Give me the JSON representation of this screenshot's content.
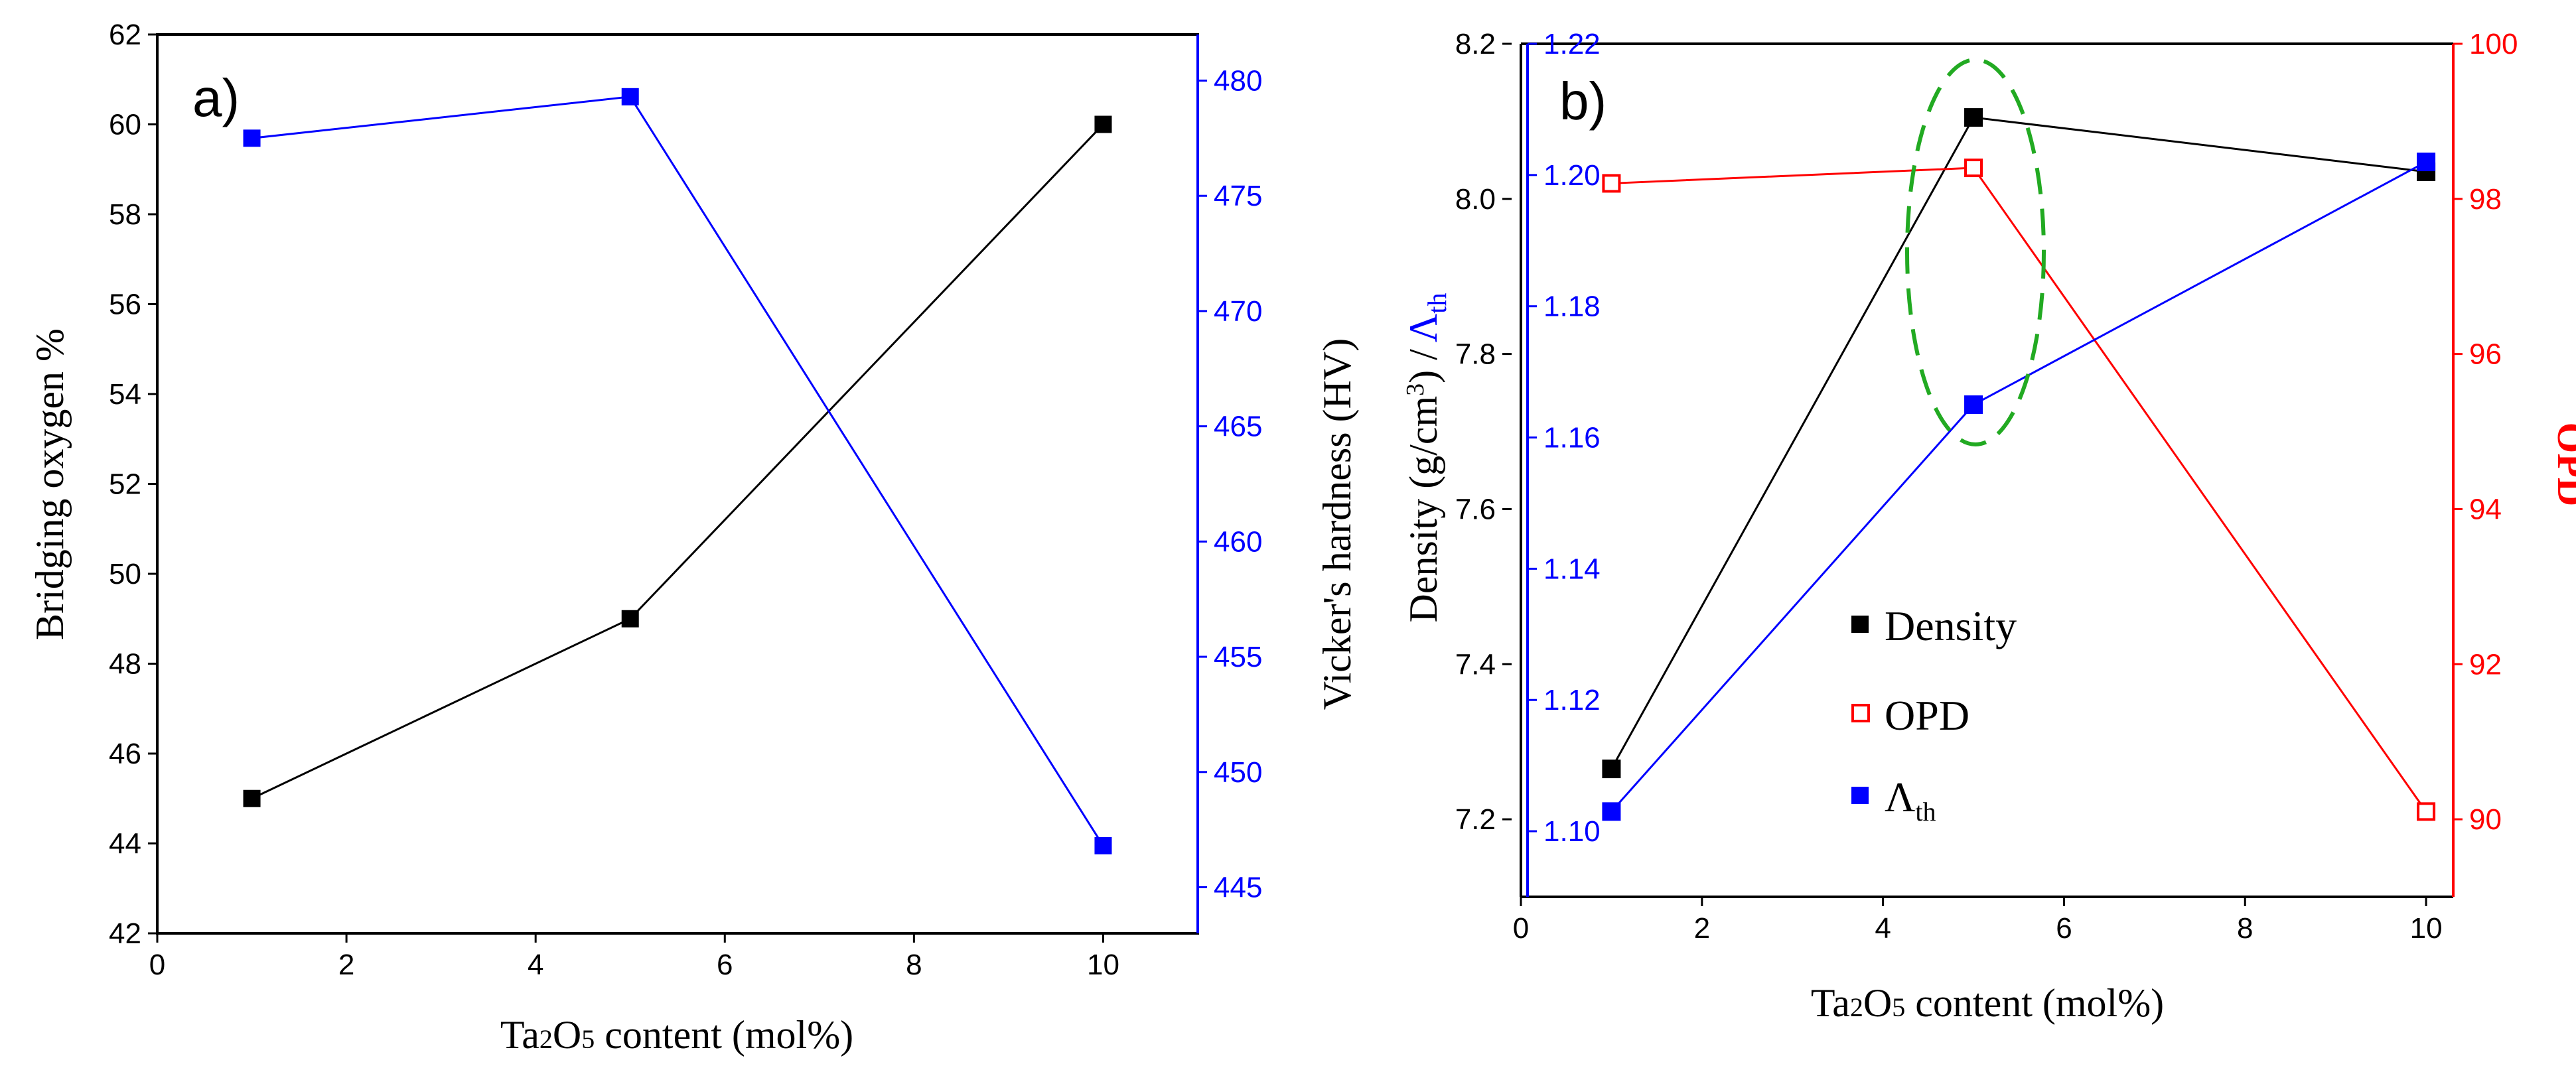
{
  "chart_data": [
    {
      "panel_label": "a)",
      "type": "line",
      "xlabel": {
        "pre": "Ta",
        "s1": "2",
        "mid": "O",
        "s2": "5",
        "post": " content (mol%)"
      },
      "ylabel_left": "Bridging oxygen %",
      "ylabel_right": "Vicker's hardness (HV)",
      "xlim": [
        0,
        11
      ],
      "ylim_left": [
        42,
        62
      ],
      "ylim_right": [
        443,
        482
      ],
      "x_ticks": [
        0,
        2,
        4,
        6,
        8,
        10
      ],
      "y_ticks_left": [
        42,
        44,
        46,
        48,
        50,
        52,
        54,
        56,
        58,
        60,
        62
      ],
      "y_ticks_right": [
        445,
        450,
        455,
        460,
        465,
        470,
        475,
        480
      ],
      "colors": {
        "left": "#000000",
        "right": "#0000ff"
      },
      "series": [
        {
          "name": "Bridging oxygen %",
          "axis": "left",
          "color": "#000000",
          "x": [
            1,
            5,
            10
          ],
          "values": [
            45.0,
            49.0,
            60.0
          ]
        },
        {
          "name": "Vicker's hardness (HV)",
          "axis": "right",
          "color": "#0000ff",
          "x": [
            1,
            5,
            10
          ],
          "values": [
            477.5,
            479.3,
            446.8
          ]
        }
      ]
    },
    {
      "panel_label": "b)",
      "type": "line",
      "xlabel": {
        "pre": "Ta",
        "s1": "2",
        "mid": "O",
        "s2": "5",
        "post": " content (mol%)"
      },
      "ylabel_left": {
        "main": "Density (g/cm",
        "sup": "3",
        "mid": ") /",
        "sym": "Λ",
        "sub": "th"
      },
      "ylabel_right": "OPD",
      "xlim": [
        0,
        10.3
      ],
      "ylim_density": [
        7.1,
        8.2
      ],
      "ylim_lambda": [
        1.09,
        1.22
      ],
      "ylim_opd": [
        89,
        100
      ],
      "x_ticks": [
        0,
        2,
        4,
        6,
        8,
        10
      ],
      "y_ticks_density": [
        7.2,
        7.4,
        7.6,
        7.8,
        8.0,
        8.2
      ],
      "y_ticks_lambda": [
        1.1,
        1.12,
        1.14,
        1.16,
        1.18,
        1.2,
        1.22
      ],
      "y_ticks_opd": [
        90,
        92,
        94,
        96,
        98,
        100
      ],
      "colors": {
        "density": "#000000",
        "lambda": "#0000ff",
        "opd": "#ff0000",
        "highlight": "#22aa22"
      },
      "series": [
        {
          "name": "Density",
          "axis": "density",
          "color": "#000000",
          "marker": "filled-square",
          "x": [
            1,
            5,
            10
          ],
          "values": [
            7.265,
            8.105,
            8.035
          ]
        },
        {
          "name": "OPD",
          "axis": "opd",
          "color": "#ff0000",
          "marker": "open-square",
          "x": [
            1,
            5,
            10
          ],
          "values": [
            98.2,
            98.4,
            90.1
          ]
        },
        {
          "name": "Λth",
          "axis": "lambda",
          "color": "#0000ff",
          "marker": "filled-square",
          "x": [
            1,
            5,
            10
          ],
          "values": [
            1.103,
            1.165,
            1.202
          ]
        }
      ],
      "legend": [
        {
          "label": "Density",
          "marker": "filled-square",
          "color": "#000000"
        },
        {
          "label": "OPD",
          "marker": "open-square",
          "color": "#ff0000"
        },
        {
          "sym": "Λ",
          "sub": "th",
          "marker": "filled-square",
          "color": "#0000ff"
        }
      ],
      "annotation": "dashed green ellipse around x = 5"
    }
  ]
}
